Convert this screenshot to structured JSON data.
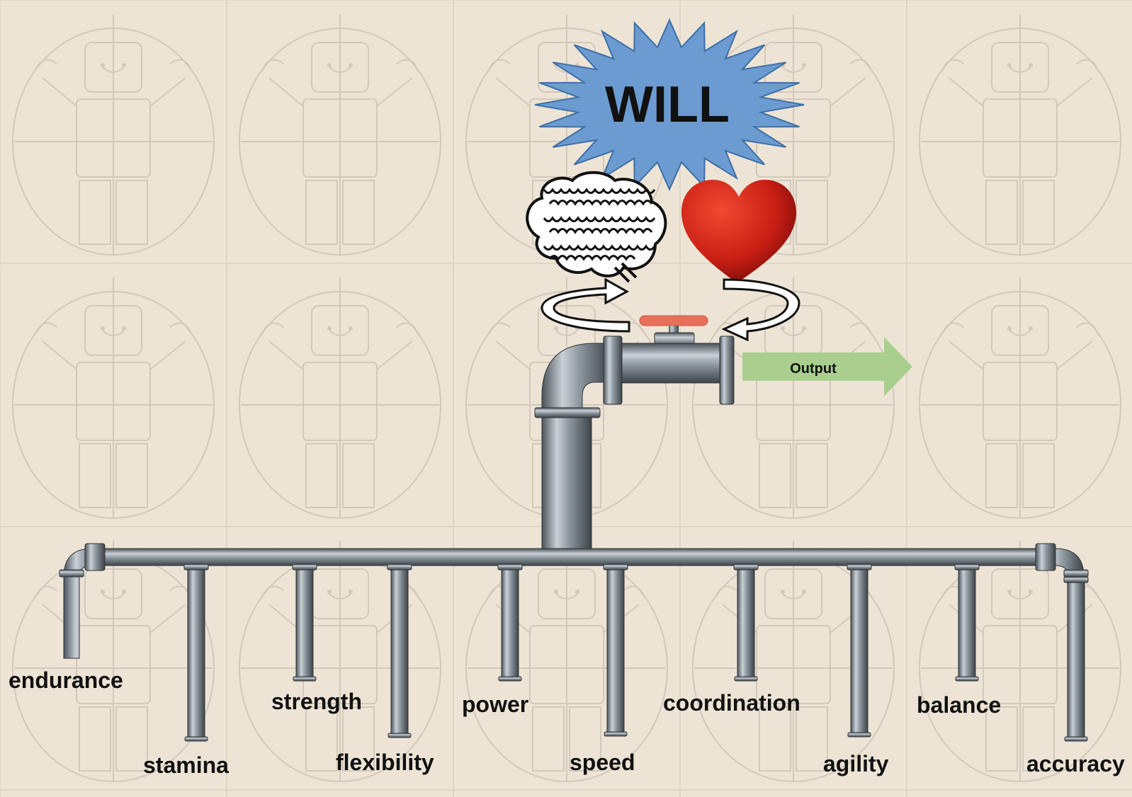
{
  "diagram": {
    "center_label": "WILL",
    "output_label": "Output",
    "icons": [
      "starburst-icon",
      "brain-icon",
      "heart-icon",
      "cycle-arrow-icon",
      "valve-icon",
      "pipe-icon",
      "lego-minifigure-sketch-icon"
    ],
    "colors": {
      "starburst": "#6b9bd1",
      "heart": "#d42a1e",
      "valve_handle": "#e8705a",
      "output_arrow": "#a9cf8e",
      "pipe": "#8a949c"
    },
    "outputs": [
      {
        "label": "endurance"
      },
      {
        "label": "stamina"
      },
      {
        "label": "strength"
      },
      {
        "label": "flexibility"
      },
      {
        "label": "power"
      },
      {
        "label": "speed"
      },
      {
        "label": "coordination"
      },
      {
        "label": "agility"
      },
      {
        "label": "balance"
      },
      {
        "label": "accuracy"
      }
    ]
  }
}
